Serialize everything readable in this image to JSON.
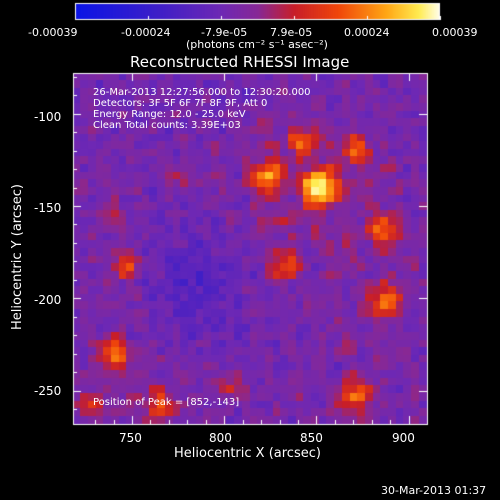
{
  "colorbar": {
    "ticks": [
      "-0.00039",
      "-0.00024",
      "-7.9e-05",
      "7.9e-05",
      "0.00024",
      "0.00039"
    ],
    "unit": "(photons cm⁻² s⁻¹ asec⁻²)"
  },
  "title": "Reconstructed RHESSI Image",
  "info": {
    "time": "26-Mar-2013 12:27:56.000 to 12:30:20.000",
    "detectors": "Detectors: 3F 5F 6F 7F 8F 9F, Att 0",
    "energy": "Energy Range: 12.0 - 25.0 keV",
    "clean": "Clean     Total counts: 3.39E+03",
    "peak": "Position of Peak = [852,-143]"
  },
  "axes": {
    "xlabel": "Heliocentric X (arcsec)",
    "ylabel": "Heliocentric Y (arcsec)",
    "xticks": [
      "750",
      "800",
      "850",
      "900"
    ],
    "yticks": [
      "-100",
      "-150",
      "-200",
      "-250"
    ]
  },
  "timestamp": "30-Mar-2013 01:37",
  "chart_data": {
    "type": "heatmap",
    "title": "Reconstructed RHESSI Image",
    "xlabel": "Heliocentric X (arcsec)",
    "ylabel": "Heliocentric Y (arcsec)",
    "xlim": [
      718,
      910
    ],
    "ylim": [
      -268,
      -78
    ],
    "colorscale_range": [
      -0.00039,
      0.00039
    ],
    "peak_position": [
      852,
      -143
    ],
    "colormap": "blue-purple-red-orange-yellow-white"
  }
}
